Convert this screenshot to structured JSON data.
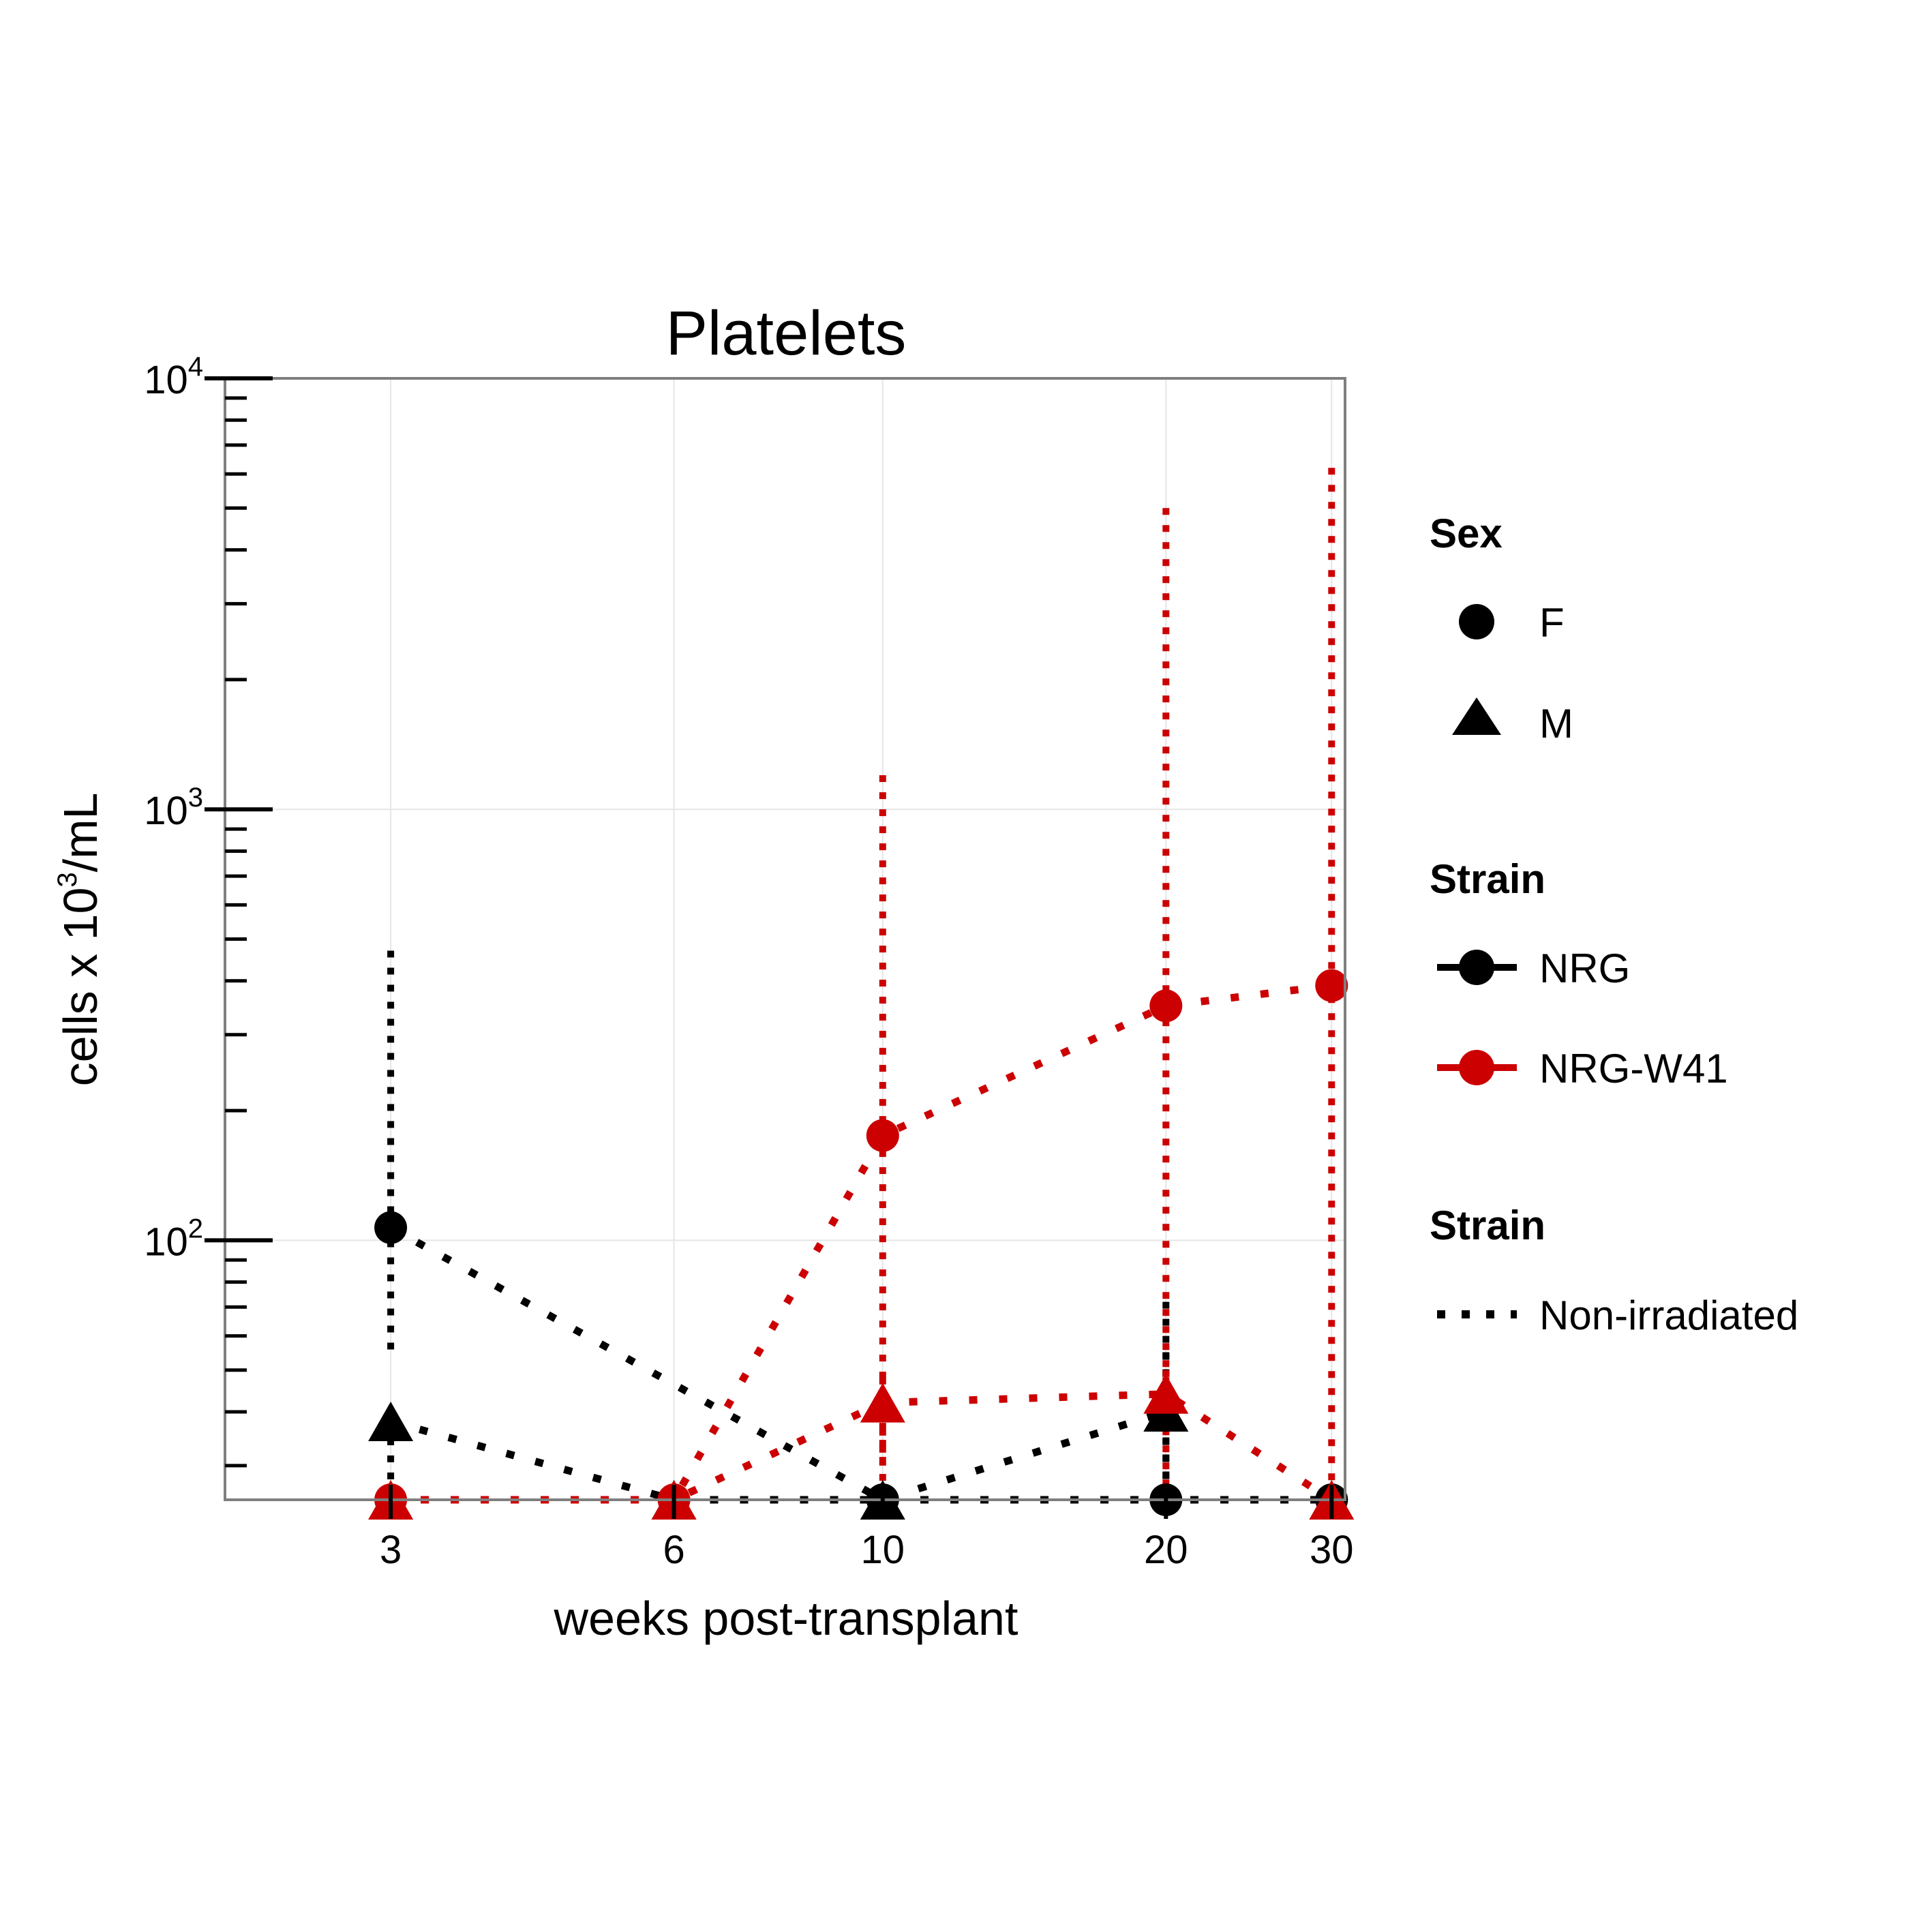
{
  "chart_data": {
    "type": "line",
    "title": "Platelets",
    "xlabel": "weeks post-transplant",
    "ylabel": "cells x 10³/mL",
    "ylabel_parts": {
      "pre": "cells x 10",
      "sup": "3",
      "post": "/mL"
    },
    "x_ticks": [
      3,
      6,
      10,
      20,
      30
    ],
    "x_scale": "log",
    "xlim": [
      2.0,
      31
    ],
    "y_scale": "log",
    "ylim": [
      25,
      10000
    ],
    "y_ticks": [
      {
        "base": "10",
        "exp": "2",
        "value": 100
      },
      {
        "base": "10",
        "exp": "3",
        "value": 1000
      },
      {
        "base": "10",
        "exp": "4",
        "value": 10000
      }
    ],
    "grid": true,
    "legend_position": "right",
    "colors": {
      "NRG": "#000000",
      "NRG-W41": "#cc0000"
    },
    "series": [
      {
        "name": "NRG",
        "sex": "F",
        "color": "#000000",
        "x": [
          3,
          10,
          20,
          30
        ],
        "y": [
          107,
          25,
          25,
          25
        ],
        "error_high": [
          470,
          null,
          72,
          null
        ],
        "error_low": [
          55,
          null,
          null,
          null
        ]
      },
      {
        "name": "NRG",
        "sex": "M",
        "color": "#000000",
        "x": [
          3,
          6,
          10,
          20
        ],
        "y": [
          38,
          25,
          25,
          40
        ],
        "error_high": [
          null,
          null,
          null,
          55
        ],
        "error_low": [
          25,
          null,
          null,
          25
        ]
      },
      {
        "name": "NRG-W41",
        "sex": "F",
        "color": "#cc0000",
        "x": [
          3,
          6,
          10,
          20,
          30
        ],
        "y": [
          25,
          25,
          175,
          350,
          390
        ],
        "error_high": [
          null,
          null,
          1200,
          5000,
          6200
        ],
        "error_low": [
          null,
          null,
          25,
          25,
          25
        ]
      },
      {
        "name": "NRG-W41",
        "sex": "M",
        "color": "#cc0000",
        "x": [
          3,
          6,
          10,
          20,
          30
        ],
        "y": [
          25,
          25,
          42,
          44,
          25
        ],
        "error_high": [
          null,
          null,
          48,
          50,
          null
        ],
        "error_low": [
          null,
          null,
          30,
          35,
          null
        ]
      }
    ],
    "legend": {
      "sex": {
        "title": "Sex",
        "items": [
          {
            "label": "F",
            "shape": "circle"
          },
          {
            "label": "M",
            "shape": "triangle"
          }
        ]
      },
      "strain": {
        "title": "Strain",
        "items": [
          {
            "label": "NRG",
            "color": "#000000"
          },
          {
            "label": "NRG-W41",
            "color": "#cc0000"
          }
        ]
      },
      "linetype": {
        "title": "Strain",
        "items": [
          {
            "label": "Non-irradiated",
            "style": "dotted"
          }
        ]
      }
    }
  }
}
